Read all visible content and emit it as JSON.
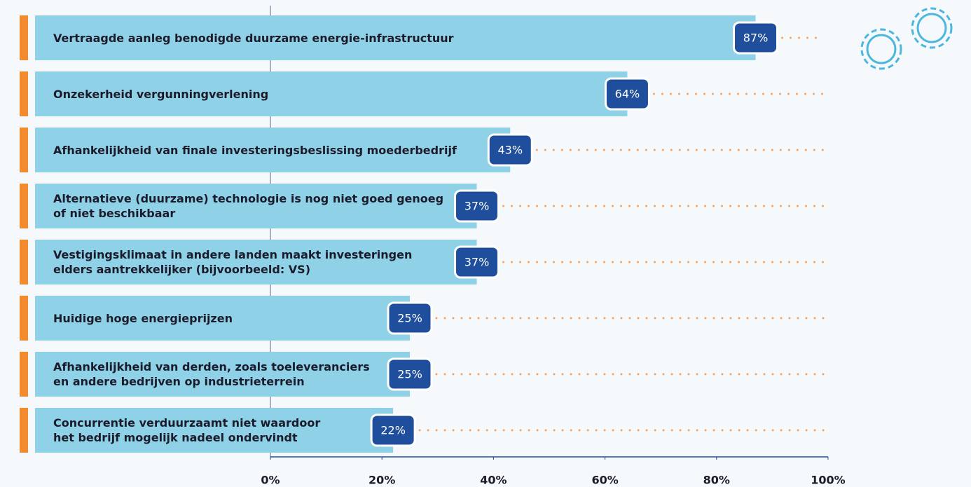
{
  "chart_data": {
    "type": "bar",
    "orientation": "horizontal",
    "categories": [
      "Vertraagde aanleg benodigde duurzame energie-infrastructuur",
      "Onzekerheid vergunningverlening",
      "Afhankelijkheid van finale investeringsbeslissing moederbedrijf",
      "Alternatieve (duurzame) technologie is nog niet goed genoeg\nof niet beschikbaar",
      "Vestigingsklimaat in andere landen maakt investeringen\nelders aantrekkelijker (bijvoorbeeld: VS)",
      "Huidige hoge energieprijzen",
      "Afhankelijkheid van derden, zoals toeleveranciers\nen andere bedrijven op industrieterrein",
      "Concurrentie verduurzaamt niet waardoor\nhet bedrijf mogelijk nadeel ondervindt"
    ],
    "values": [
      87,
      64,
      43,
      37,
      37,
      25,
      25,
      22
    ],
    "value_labels": [
      "87%",
      "64%",
      "43%",
      "37%",
      "37%",
      "25%",
      "25%",
      "22%"
    ],
    "color": "#8fd2e7",
    "xlim": [
      0,
      100
    ],
    "xticks": [
      {
        "value": 0,
        "label": "0%"
      },
      {
        "value": 20,
        "label": "20%"
      },
      {
        "value": 40,
        "label": "40%"
      },
      {
        "value": 60,
        "label": "60%"
      },
      {
        "value": 80,
        "label": "80%"
      },
      {
        "value": 100,
        "label": "100%"
      }
    ]
  }
}
